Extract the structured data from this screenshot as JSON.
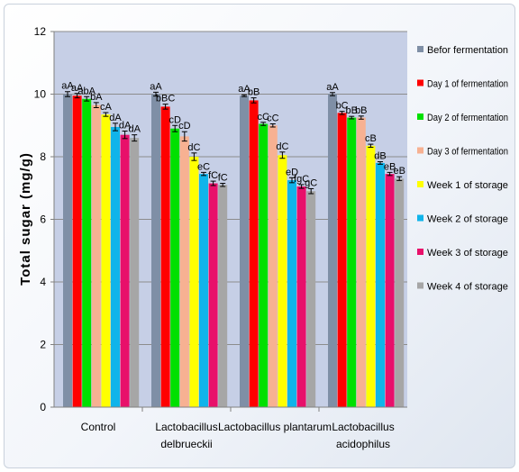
{
  "chart_data": {
    "type": "bar",
    "ylabel": "Total sugar (mg/g)",
    "ylim": [
      0,
      12
    ],
    "yticks": [
      0,
      2,
      4,
      6,
      8,
      10,
      12
    ],
    "grid": true,
    "legend_position": "right",
    "categories": [
      {
        "line1": "Control",
        "line2": ""
      },
      {
        "line1": "Lactobacillus",
        "line2": "delbrueckii"
      },
      {
        "line1": "Lactobacillus plantarum",
        "line2": ""
      },
      {
        "line1": "Lactobacillus",
        "line2": "acidophilus"
      }
    ],
    "series": [
      {
        "name": "Befor fermentation",
        "color": "#7f8fa6",
        "values": [
          10.0,
          10.0,
          9.95,
          10.0
        ],
        "errors": [
          0.08,
          0.06,
          0.03,
          0.05
        ],
        "labels": [
          "aA",
          "aA",
          "aA",
          "aA"
        ]
      },
      {
        "name": "Day 1 of fermentation",
        "color": "#ff0000",
        "values": [
          9.95,
          9.6,
          9.8,
          9.4
        ],
        "errors": [
          0.07,
          0.08,
          0.08,
          0.05
        ],
        "labels": [
          "aA",
          "bBC",
          "bB",
          "bC"
        ]
      },
      {
        "name": "Day 2 of fermentation",
        "color": "#00e000",
        "values": [
          9.85,
          8.9,
          9.05,
          9.25
        ],
        "errors": [
          0.07,
          0.1,
          0.05,
          0.04
        ],
        "labels": [
          "abA",
          "cD",
          "cC",
          "bB"
        ]
      },
      {
        "name": "Day 3 of fermentation",
        "color": "#f7b192",
        "values": [
          9.65,
          8.65,
          9.0,
          9.25
        ],
        "errors": [
          0.08,
          0.15,
          0.05,
          0.05
        ],
        "labels": [
          "bA",
          "cD",
          "cC",
          "bB"
        ]
      },
      {
        "name": "Week 1 of storage",
        "color": "#ffff00",
        "values": [
          9.35,
          8.0,
          8.05,
          8.35
        ],
        "errors": [
          0.06,
          0.12,
          0.1,
          0.05
        ],
        "labels": [
          "cA",
          "dC",
          "dC",
          "cB"
        ]
      },
      {
        "name": "Week 2 of storage",
        "color": "#10b4ea",
        "values": [
          8.95,
          7.45,
          7.25,
          7.8
        ],
        "errors": [
          0.12,
          0.05,
          0.08,
          0.04
        ],
        "labels": [
          "dA",
          "eC",
          "eD",
          "dB"
        ]
      },
      {
        "name": "Week 3 of storage",
        "color": "#e8106a",
        "values": [
          8.7,
          7.15,
          7.05,
          7.45
        ],
        "errors": [
          0.12,
          0.07,
          0.06,
          0.05
        ],
        "labels": [
          "dA",
          "fC",
          "fgC",
          "eB"
        ]
      },
      {
        "name": "Week 4 of storage",
        "color": "#a6a6a6",
        "values": [
          8.6,
          7.1,
          6.9,
          7.3
        ],
        "errors": [
          0.1,
          0.05,
          0.08,
          0.06
        ],
        "labels": [
          "dA",
          "fC",
          "gC",
          "eB"
        ]
      }
    ]
  }
}
